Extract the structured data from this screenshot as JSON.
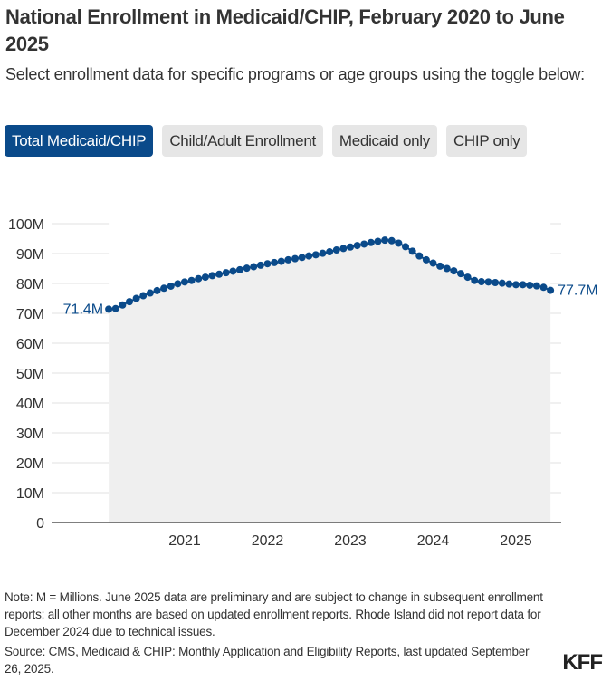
{
  "header": {
    "title": "National Enrollment in Medicaid/CHIP, February 2020 to June 2025",
    "subtitle": "Select enrollment data for specific programs or age groups using the toggle below:"
  },
  "toggles": [
    {
      "label": "Total Medicaid/CHIP",
      "active": true
    },
    {
      "label": "Child/Adult Enrollment",
      "active": false
    },
    {
      "label": "Medicaid only",
      "active": false
    },
    {
      "label": "CHIP only",
      "active": false
    }
  ],
  "colors": {
    "series": "#0a4a8a",
    "area": "#efefef",
    "grid": "#e0e0e0",
    "toggle_active": "#0a4a8a",
    "toggle_inactive": "#e6e6e6"
  },
  "chart_data": {
    "type": "line",
    "title": "National Enrollment in Medicaid/CHIP, February 2020 to June 2025",
    "xlabel": "",
    "ylabel": "",
    "start": "2020-02",
    "end": "2025-06",
    "ylim": [
      0,
      100
    ],
    "yticks": [
      0,
      10,
      20,
      30,
      40,
      50,
      60,
      70,
      80,
      90,
      100
    ],
    "ytick_labels": [
      "0",
      "10M",
      "20M",
      "30M",
      "40M",
      "50M",
      "60M",
      "70M",
      "80M",
      "90M",
      "100M"
    ],
    "xticks": [
      2021,
      2022,
      2023,
      2024,
      2025
    ],
    "xtick_labels": [
      "2021",
      "2022",
      "2023",
      "2024",
      "2025"
    ],
    "grid": true,
    "area_fill": true,
    "series": [
      {
        "name": "Total Medicaid/CHIP",
        "unit": "millions",
        "values": [
          71.4,
          71.6,
          72.8,
          73.9,
          75.0,
          75.9,
          76.8,
          77.6,
          78.4,
          79.1,
          79.9,
          80.5,
          81.0,
          81.6,
          82.1,
          82.6,
          83.1,
          83.6,
          84.1,
          84.6,
          85.1,
          85.6,
          86.1,
          86.6,
          87.0,
          87.4,
          87.9,
          88.3,
          88.7,
          89.2,
          89.6,
          90.1,
          90.6,
          91.2,
          91.7,
          92.2,
          92.7,
          93.2,
          93.7,
          94.1,
          94.5,
          94.3,
          93.5,
          92.3,
          90.8,
          89.2,
          87.9,
          86.8,
          85.8,
          85.0,
          84.2,
          83.3,
          82.1,
          81.0,
          80.6,
          80.5,
          80.3,
          80.1,
          79.8,
          79.6,
          79.6,
          79.4,
          79.2,
          78.7,
          77.7
        ],
        "start_label": "71.4M",
        "end_label": "77.7M"
      }
    ]
  },
  "footer": {
    "note": "Note: M = Millions. June 2025 data are preliminary and are subject to change in subsequent enrollment reports; all other months are based on updated enrollment reports. Rhode Island did not report data for December 2024 due to technical issues.",
    "source": "Source: CMS, Medicaid & CHIP: Monthly Application and Eligibility Reports, last updated September 26, 2025.",
    "logo": "KFF"
  }
}
